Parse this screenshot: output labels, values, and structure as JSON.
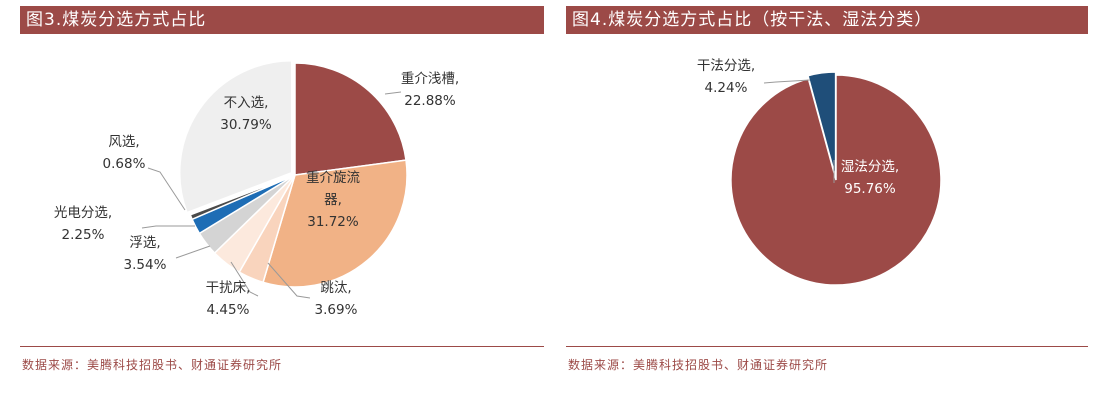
{
  "figures": [
    {
      "title": "图3.煤炭分选方式占比",
      "source": "数据来源：美腾科技招股书、财通证券研究所"
    },
    {
      "title": "图4.煤炭分选方式占比（按干法、湿法分类）",
      "source": "数据来源：美腾科技招股书、财通证券研究所"
    }
  ],
  "chart_data": [
    {
      "type": "pie",
      "title": "图3.煤炭分选方式占比",
      "slices": [
        {
          "name": "重介浅槽",
          "value": 22.88,
          "display": "22.88%",
          "color": "#9c4a47"
        },
        {
          "name": "重介旋流器",
          "value": 31.72,
          "display": "31.72%",
          "color": "#f1b286"
        },
        {
          "name": "跳汰",
          "value": 3.69,
          "display": "3.69%",
          "color": "#f9d4bd"
        },
        {
          "name": "干扰床",
          "value": 4.45,
          "display": "4.45%",
          "color": "#fce9dd"
        },
        {
          "name": "浮选",
          "value": 3.54,
          "display": "3.54%",
          "color": "#d4d4d4"
        },
        {
          "name": "光电分选",
          "value": 2.25,
          "display": "2.25%",
          "color": "#1e6db5"
        },
        {
          "name": "风选",
          "value": 0.68,
          "display": "0.68%",
          "color": "#4a4a4a"
        },
        {
          "name": "不入选",
          "value": 30.79,
          "display": "30.79%",
          "color": "#efefef"
        }
      ]
    },
    {
      "type": "pie",
      "title": "图4.煤炭分选方式占比（按干法、湿法分类）",
      "slices": [
        {
          "name": "湿法分选",
          "value": 95.76,
          "display": "95.76%",
          "color": "#9c4a47"
        },
        {
          "name": "干法分选",
          "value": 4.24,
          "display": "4.24%",
          "color": "#1f4e79"
        }
      ]
    }
  ]
}
